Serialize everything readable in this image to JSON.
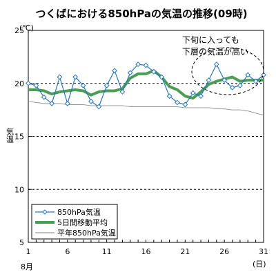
{
  "chart_data": {
    "type": "line",
    "title": "つくばにおける850hPaの気温の推移(09時)",
    "ylabel_unit": "(℃)",
    "ylabel": "気温",
    "xlabel_unit": "(日)",
    "x_month_label": "8月",
    "x": [
      1,
      2,
      3,
      4,
      5,
      6,
      7,
      8,
      9,
      10,
      11,
      12,
      13,
      14,
      15,
      16,
      17,
      18,
      19,
      20,
      21,
      22,
      23,
      24,
      25,
      26,
      27,
      28,
      29,
      30,
      31
    ],
    "xticks": [
      1,
      6,
      11,
      16,
      21,
      26,
      31
    ],
    "yticks": [
      5,
      10,
      15,
      20,
      25
    ],
    "ylim": [
      5,
      25
    ],
    "xlim": [
      1,
      31
    ],
    "dashed_grid_y": [
      10,
      15,
      20
    ],
    "series": [
      {
        "name": "850hPa気温",
        "style": "line-diamond",
        "color": "#2277cc",
        "values": [
          20.0,
          19.8,
          18.7,
          18.1,
          20.6,
          18.1,
          20.6,
          19.8,
          18.3,
          17.8,
          19.8,
          21.2,
          19.2,
          21.0,
          21.8,
          21.7,
          21.1,
          20.6,
          18.8,
          18.2,
          18.0,
          19.1,
          18.8,
          20.3,
          21.8,
          20.3,
          19.6,
          19.8,
          20.8,
          20.2,
          20.8
        ]
      },
      {
        "name": "5日間移動平均",
        "style": "thick-line",
        "color": "#4a9e54",
        "values": [
          19.4,
          19.4,
          19.3,
          19.0,
          19.2,
          19.3,
          19.4,
          19.3,
          18.9,
          19.2,
          19.3,
          19.3,
          19.5,
          20.5,
          20.9,
          20.9,
          21.2,
          20.6,
          19.7,
          19.4,
          18.8,
          18.6,
          19.2,
          19.9,
          20.2,
          20.4,
          20.6,
          20.2,
          20.3,
          20.3,
          20.3
        ]
      },
      {
        "name": "平年850hPa気温",
        "style": "thin-line",
        "color": "#999999",
        "values": [
          18.3,
          18.2,
          18.1,
          18.1,
          18.1,
          18.0,
          18.0,
          18.0,
          17.9,
          17.9,
          17.9,
          17.9,
          17.9,
          17.8,
          17.8,
          17.8,
          17.8,
          17.8,
          17.8,
          17.8,
          17.7,
          17.7,
          17.7,
          17.7,
          17.6,
          17.6,
          17.5,
          17.5,
          17.4,
          17.2,
          17.0
        ]
      }
    ],
    "annotation": {
      "line1": "下旬に入っても",
      "line2": "下層の気温が高い"
    },
    "legend_position": "bottom-left",
    "colors": {
      "frame": "#000000",
      "grid": "#000000",
      "annotation_ellipse": "#000000"
    }
  }
}
